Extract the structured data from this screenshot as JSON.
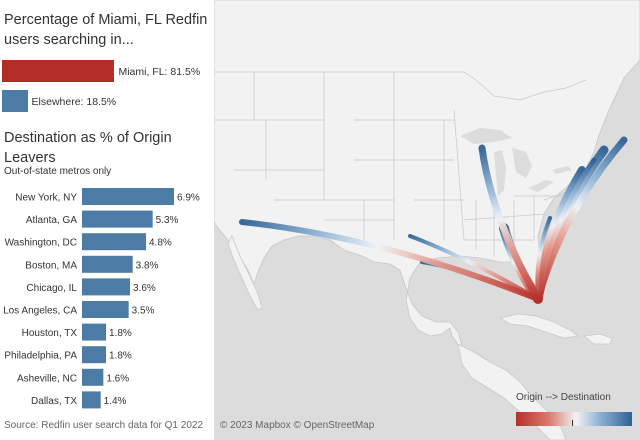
{
  "title": "Percentage of Miami, FL Redfin users searching in...",
  "share": [
    {
      "label": "Miami, FL: 81.5%",
      "value": 81.5,
      "color": "#b22d25"
    },
    {
      "label": "Elsewhere: 18.5%",
      "value": 18.5,
      "color": "#4c7ba5"
    }
  ],
  "chart_data": {
    "type": "bar",
    "title": "Destination as % of Origin Leavers",
    "subtitle": "Out-of-state metros only",
    "categories": [
      "New York, NY",
      "Atlanta, GA",
      "Washington, DC",
      "Boston, MA",
      "Chicago, IL",
      "Los Angeles, CA",
      "Houston, TX",
      "Philadelphia, PA",
      "Asheville, NC",
      "Dallas, TX"
    ],
    "values": [
      6.9,
      5.3,
      4.8,
      3.8,
      3.6,
      3.5,
      1.8,
      1.8,
      1.6,
      1.4
    ],
    "value_labels": [
      "6.9%",
      "5.3%",
      "4.8%",
      "3.8%",
      "3.6%",
      "3.5%",
      "1.8%",
      "1.8%",
      "1.6%",
      "1.4%"
    ],
    "bar_color": "#4c7ba5",
    "orientation": "horizontal"
  },
  "source": "Source: Redfin user search data for Q1 2022",
  "map": {
    "attribution": "© 2023 Mapbox © OpenStreetMap",
    "legend_title": "Origin --> Destination",
    "origin_color": "#b5302a",
    "destination_color": "#2f6195",
    "land_color": "#f2f2f2",
    "water_color": "#dcdcdc",
    "origin": "Miami, FL"
  }
}
